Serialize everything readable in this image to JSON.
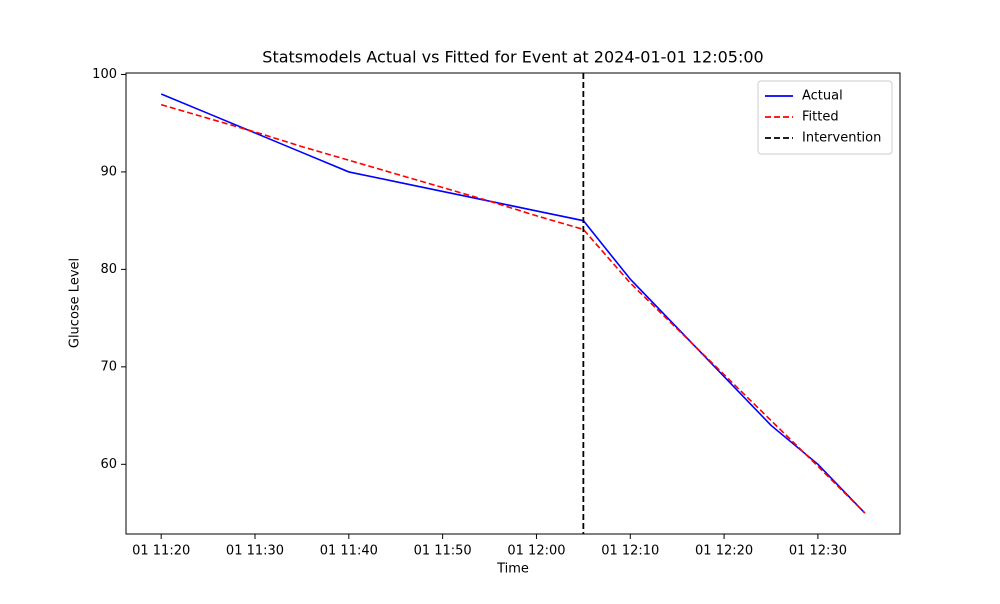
{
  "chart_data": {
    "type": "line",
    "title": "Statsmodels Actual vs Fitted for Event at 2024-01-01 12:05:00",
    "xlabel": "Time",
    "ylabel": "Glucose Level",
    "x": [
      "01 11:20",
      "01 11:25",
      "01 11:30",
      "01 11:35",
      "01 11:40",
      "01 11:45",
      "01 11:50",
      "01 11:55",
      "01 12:00",
      "01 12:05",
      "01 12:10",
      "01 12:15",
      "01 12:20",
      "01 12:25",
      "01 12:30",
      "01 12:35"
    ],
    "series": [
      {
        "name": "Actual",
        "color": "#0000ff",
        "dashed": false,
        "values": [
          98,
          96,
          94,
          92,
          90,
          89,
          88,
          87,
          86,
          85,
          79,
          74,
          69,
          64,
          60,
          55
        ]
      },
      {
        "name": "Fitted",
        "color": "#ff0000",
        "dashed": true,
        "values": [
          96.9,
          95.5,
          94.1,
          92.6,
          91.2,
          89.8,
          88.4,
          87.0,
          85.5,
          84.1,
          78.6,
          73.9,
          69.2,
          64.5,
          59.8,
          55.0
        ]
      }
    ],
    "intervention": {
      "name": "Intervention",
      "x": "01 12:05",
      "color": "#000000",
      "dashed": true
    },
    "xlim": [
      "01 11:16:15",
      "01 12:38:45"
    ],
    "xticks": [
      "01 11:20",
      "01 11:30",
      "01 11:40",
      "01 11:50",
      "01 12:00",
      "01 12:10",
      "01 12:20",
      "01 12:30"
    ],
    "ylim": [
      52.85,
      100.15
    ],
    "yticks": [
      60,
      70,
      80,
      90,
      100
    ],
    "grid": false,
    "legend": "upper right"
  }
}
